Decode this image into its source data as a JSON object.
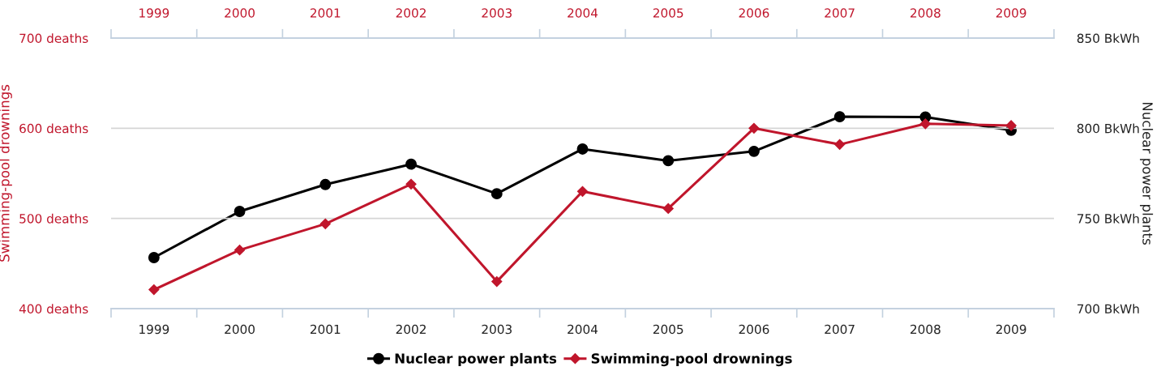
{
  "chart_data": {
    "type": "line",
    "x": [
      1999,
      2000,
      2001,
      2002,
      2003,
      2004,
      2005,
      2006,
      2007,
      2008,
      2009
    ],
    "xlim": [
      1998.5,
      2009.5
    ],
    "xticks": [
      {
        "value": 1998.5,
        "label": null
      },
      1999,
      {
        "value": 1999.5,
        "label": null
      },
      2000,
      {
        "value": 2000.5,
        "label": null
      },
      2001,
      {
        "value": 2001.5,
        "label": null
      },
      2002,
      {
        "value": 2002.5,
        "label": null
      },
      2003,
      {
        "value": 2003.5,
        "label": null
      },
      2004,
      {
        "value": 2004.5,
        "label": null
      },
      2005,
      {
        "value": 2005.5,
        "label": null
      },
      2006,
      {
        "value": 2006.5,
        "label": null
      },
      2007,
      {
        "value": 2007.5,
        "label": null
      },
      2008,
      {
        "value": 2008.5,
        "label": null
      },
      2009,
      {
        "value": 2009.5,
        "label": null
      }
    ],
    "x2lim": [
      1998.5,
      2009.5
    ],
    "x2ticks": [
      {
        "value": 1998.5,
        "label": null
      },
      1999,
      {
        "value": 1999.5,
        "label": null
      },
      2000,
      {
        "value": 2000.5,
        "label": null
      },
      2001,
      {
        "value": 2001.5,
        "label": null
      },
      2002,
      {
        "value": 2002.5,
        "label": null
      },
      2003,
      {
        "value": 2003.5,
        "label": null
      },
      2004,
      {
        "value": 2004.5,
        "label": null
      },
      2005,
      {
        "value": 2005.5,
        "label": null
      },
      2006,
      {
        "value": 2006.5,
        "label": null
      },
      2007,
      {
        "value": 2007.5,
        "label": null
      },
      2008,
      {
        "value": 2008.5,
        "label": null
      },
      2009,
      {
        "value": 2009.5,
        "label": null
      }
    ],
    "ylabel": "Swimming-pool drownings",
    "y2label": "Nuclear power plants",
    "ylim": [
      400,
      700
    ],
    "yticks": [
      {
        "value": 400,
        "label": "400 deaths"
      },
      {
        "value": 500,
        "label": "500 deaths"
      },
      {
        "value": 600,
        "label": "600 deaths"
      },
      {
        "value": 700,
        "label": "700 deaths"
      }
    ],
    "y2lim": [
      700,
      850
    ],
    "y2ticks": [
      {
        "value": 700,
        "label": "700 BkWh"
      },
      {
        "value": 750,
        "label": "750 BkWh"
      },
      {
        "value": 800,
        "label": "800 BkWh"
      },
      {
        "value": 850,
        "label": "850 BkWh"
      }
    ],
    "series": [
      {
        "name": "Nuclear power plants",
        "color": "#000000",
        "axis": "y2",
        "marker": "circle",
        "values": [
          728.3,
          753.9,
          768.8,
          780.1,
          763.7,
          788.5,
          782,
          787.2,
          806.4,
          806.2,
          798.9
        ]
      },
      {
        "name": "Swimming-pool drownings",
        "color": "#c0162c",
        "marker": "diamond",
        "values": [
          421,
          465,
          494,
          538,
          430,
          530,
          511,
          600,
          582,
          605,
          603
        ]
      }
    ],
    "grid": "y",
    "legend": "bottom",
    "line_style": "solid"
  }
}
